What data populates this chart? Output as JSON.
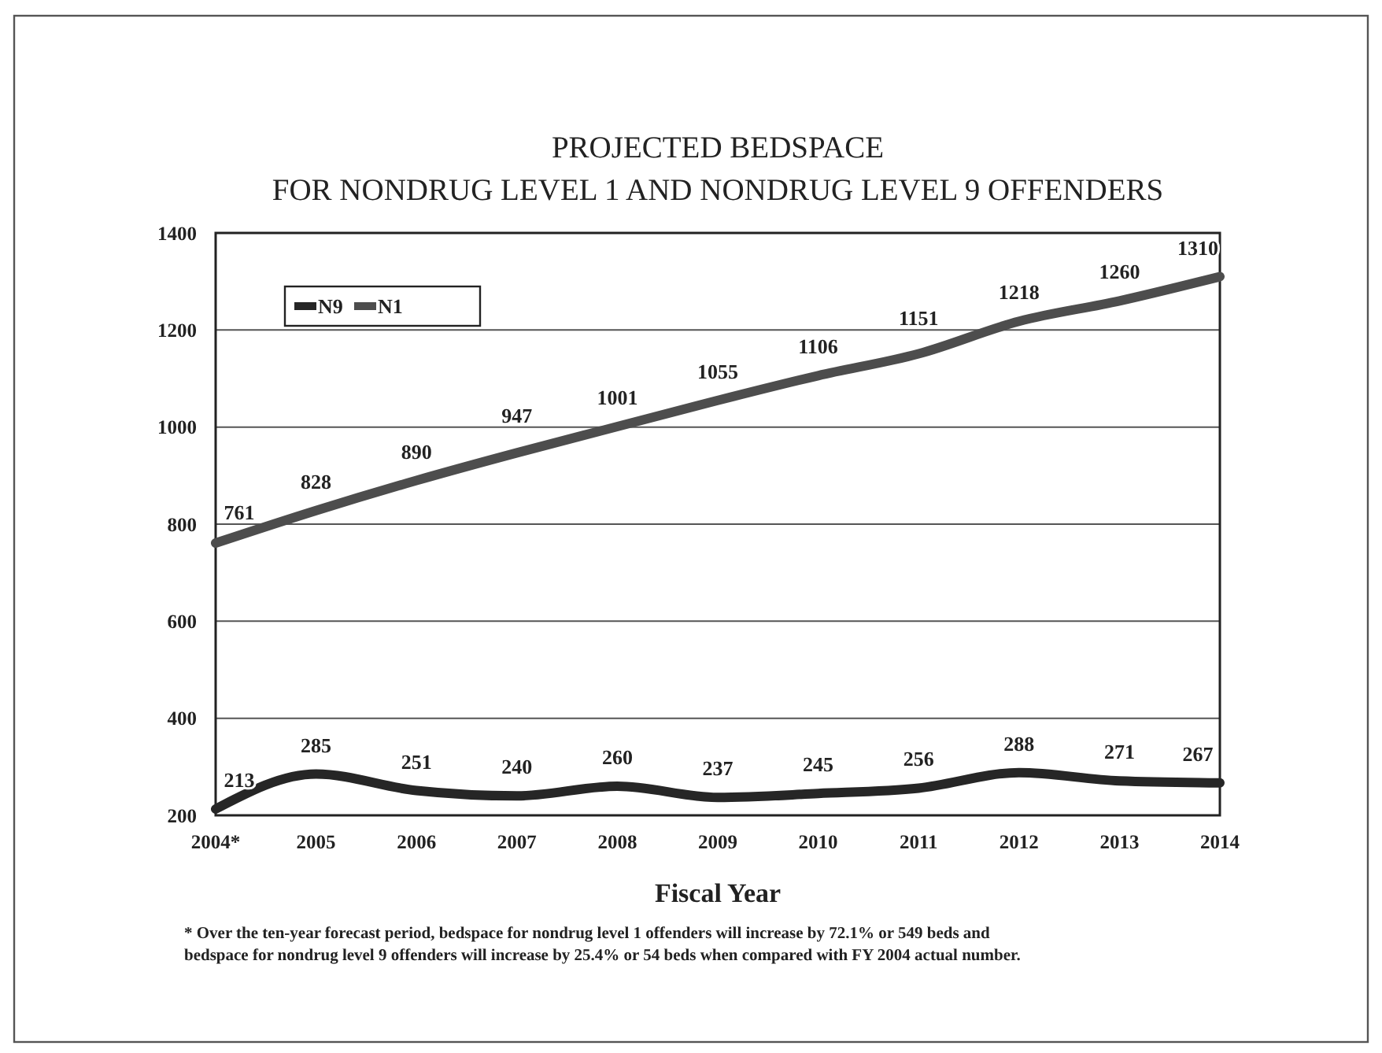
{
  "chart_data": {
    "type": "line",
    "title": "PROJECTED BEDSPACE\nFOR NONDRUG LEVEL 1 AND NONDRUG LEVEL 9 OFFENDERS",
    "xlabel": "Fiscal Year",
    "categories": [
      "2004*",
      "2005",
      "2006",
      "2007",
      "2008",
      "2009",
      "2010",
      "2011",
      "2012",
      "2013",
      "2014"
    ],
    "series": [
      {
        "name": "N9",
        "color": "#262626",
        "values": [
          213,
          285,
          251,
          240,
          260,
          237,
          245,
          256,
          288,
          271,
          267
        ]
      },
      {
        "name": "N1",
        "color": "#4d4d4d",
        "values": [
          761,
          828,
          890,
          947,
          1001,
          1055,
          1106,
          1151,
          1218,
          1260,
          1310
        ]
      }
    ],
    "ylim": [
      200,
      1400
    ],
    "yticks": [
      200,
      400,
      600,
      800,
      1000,
      1200,
      1400
    ],
    "grid": "y",
    "legend": "top left",
    "data_labels": true,
    "line_style": "solid",
    "annotations": [
      "* Over the ten-year forecast period, bedspace for nondrug level 1 offenders will increase by 72.1% or 549 beds and bedspace for nondrug level 9 offenders will increase by 25.4% or 54 beds when compared with FY 2004 actual number."
    ]
  }
}
